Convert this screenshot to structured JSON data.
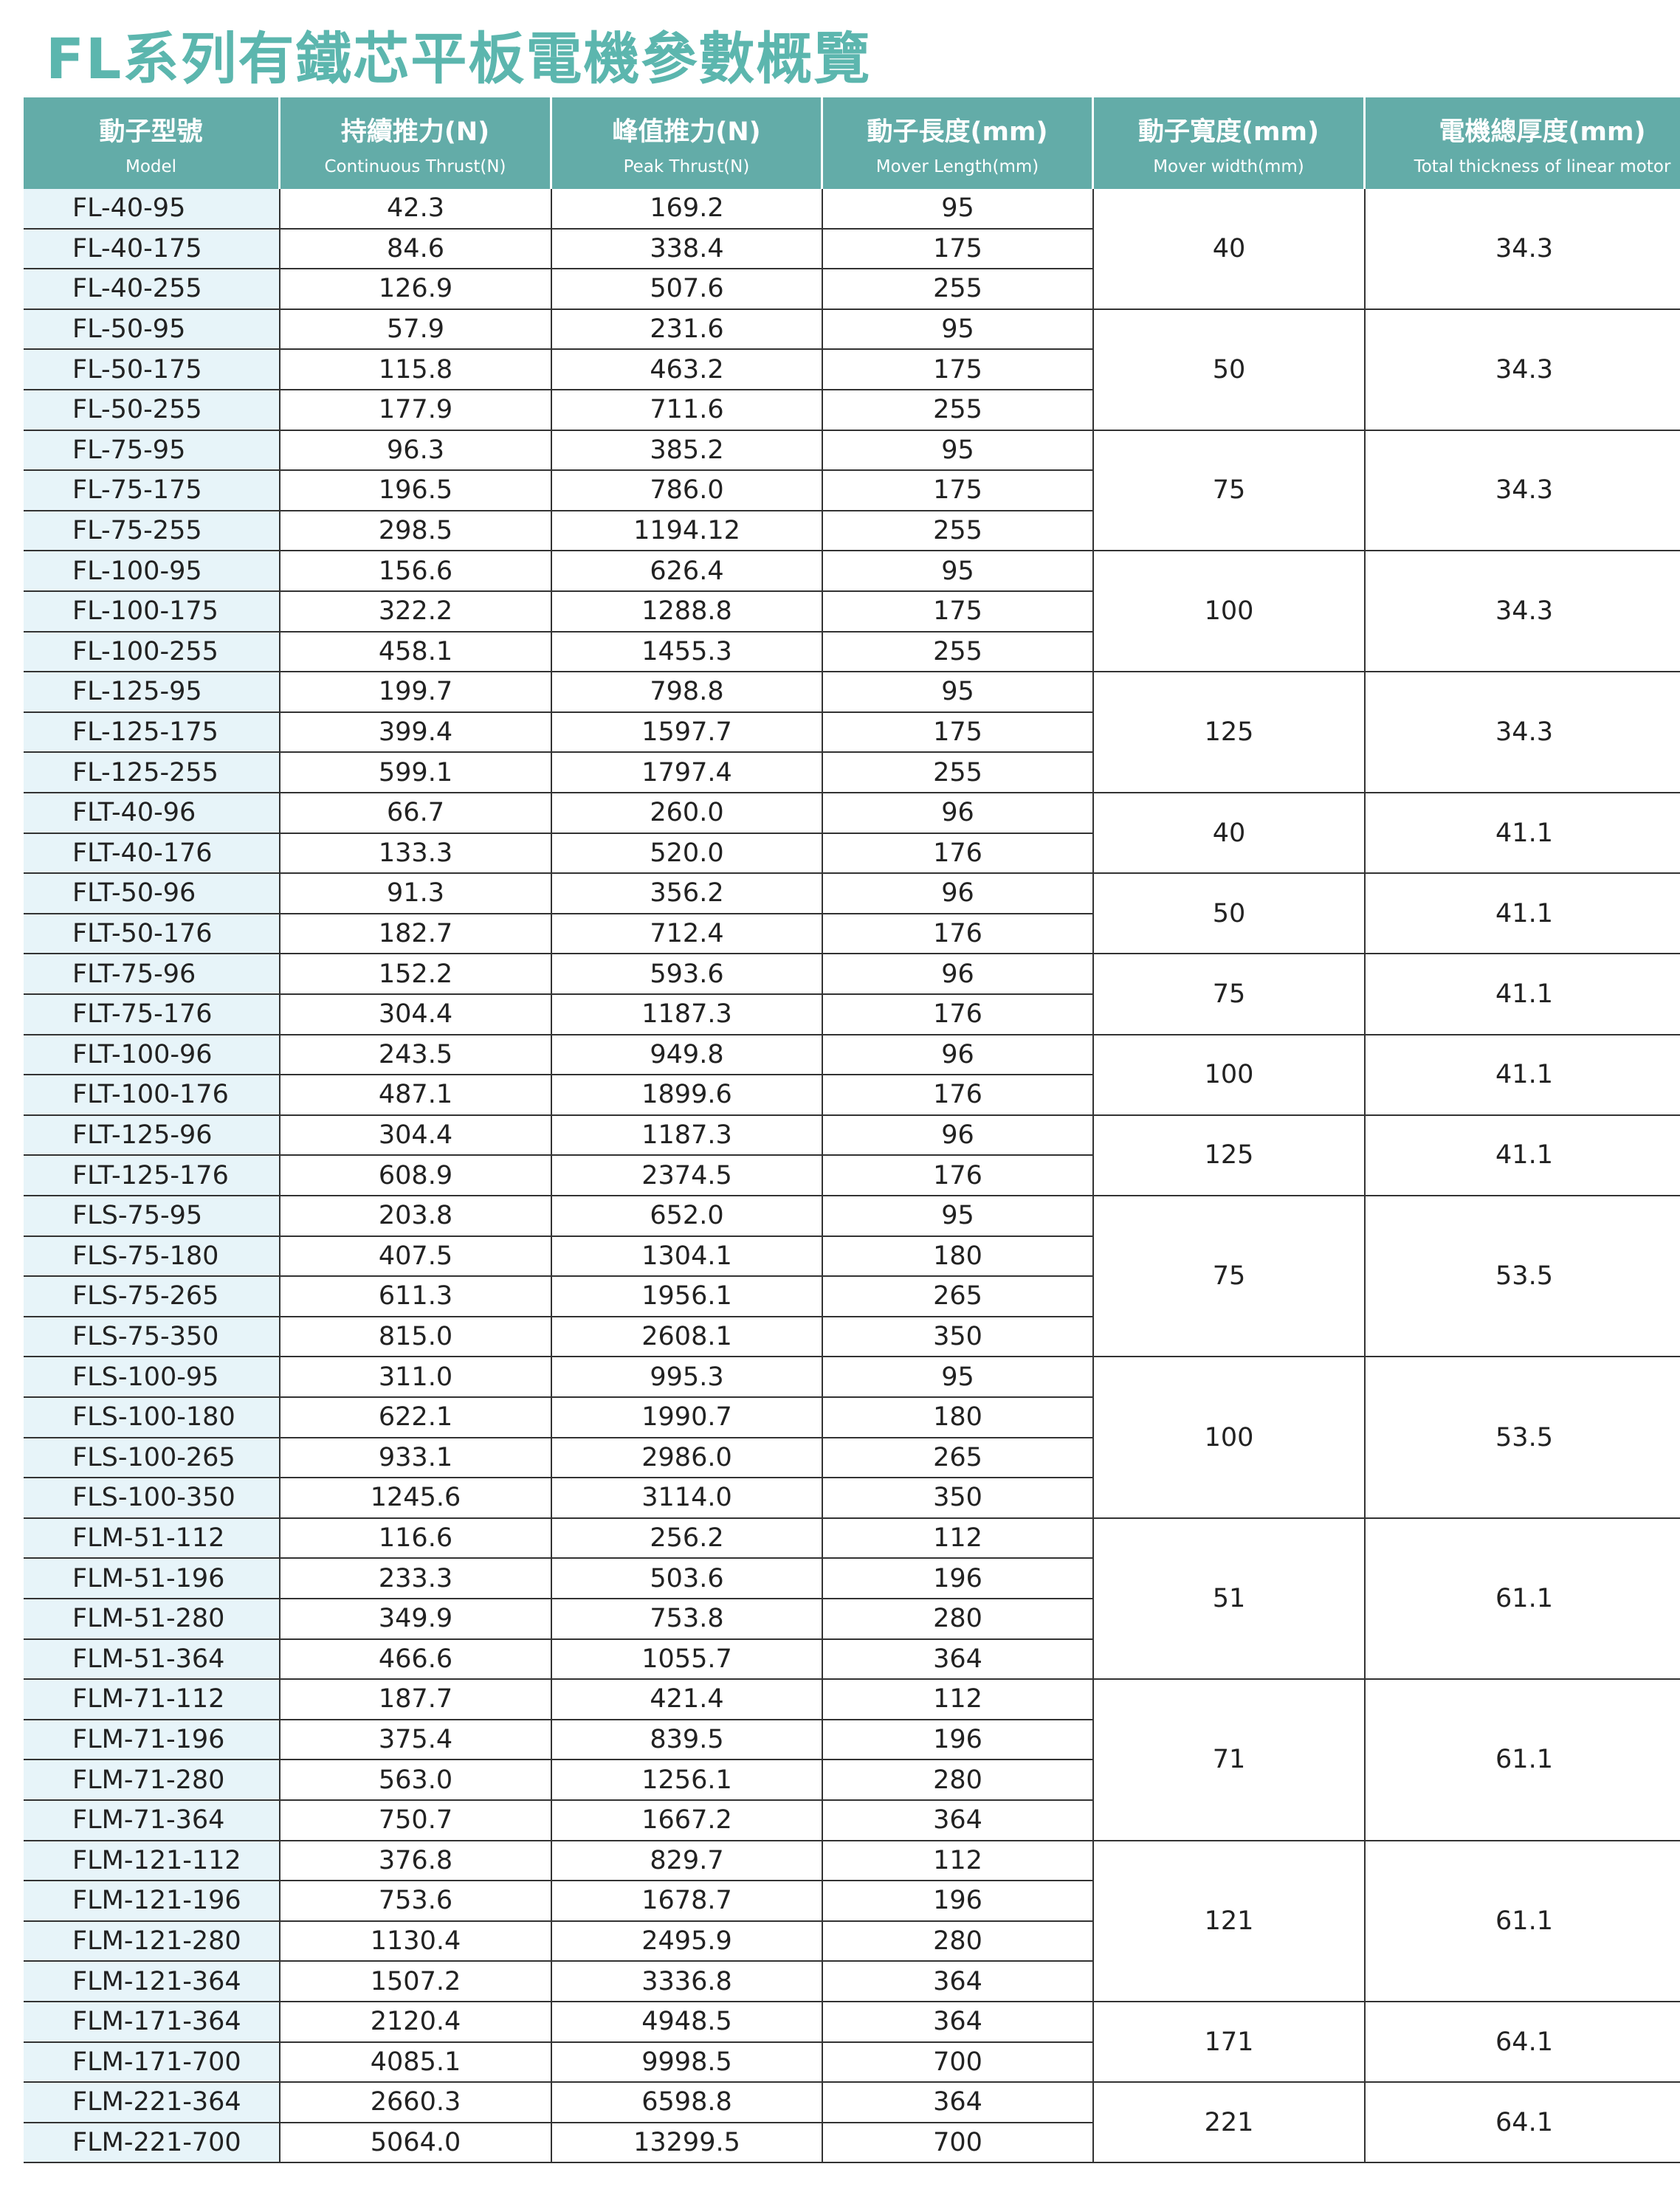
{
  "title": "FL系列有鐵芯平板電機參數概覽",
  "table": {
    "headers": [
      {
        "zh": "動子型號",
        "en": "Model"
      },
      {
        "zh": "持續推力(N)",
        "en": "Continuous Thrust(N)"
      },
      {
        "zh": "峰值推力(N)",
        "en": "Peak Thrust(N)"
      },
      {
        "zh": "動子長度(mm)",
        "en": "Mover Length(mm)"
      },
      {
        "zh": "動子寬度(mm)",
        "en": "Mover width(mm)"
      },
      {
        "zh": "電機總厚度(mm)",
        "en": "Total thickness of linear motor"
      }
    ],
    "groups": [
      {
        "width": "40",
        "thickness": "34.3",
        "rows": [
          [
            "FL-40-95",
            "42.3",
            "169.2",
            "95"
          ],
          [
            "FL-40-175",
            "84.6",
            "338.4",
            "175"
          ],
          [
            "FL-40-255",
            "126.9",
            "507.6",
            "255"
          ]
        ]
      },
      {
        "width": "50",
        "thickness": "34.3",
        "rows": [
          [
            "FL-50-95",
            "57.9",
            "231.6",
            "95"
          ],
          [
            "FL-50-175",
            "115.8",
            "463.2",
            "175"
          ],
          [
            "FL-50-255",
            "177.9",
            "711.6",
            "255"
          ]
        ]
      },
      {
        "width": "75",
        "thickness": "34.3",
        "rows": [
          [
            "FL-75-95",
            "96.3",
            "385.2",
            "95"
          ],
          [
            "FL-75-175",
            "196.5",
            "786.0",
            "175"
          ],
          [
            "FL-75-255",
            "298.5",
            "1194.12",
            "255"
          ]
        ]
      },
      {
        "width": "100",
        "thickness": "34.3",
        "rows": [
          [
            "FL-100-95",
            "156.6",
            "626.4",
            "95"
          ],
          [
            "FL-100-175",
            "322.2",
            "1288.8",
            "175"
          ],
          [
            "FL-100-255",
            "458.1",
            "1455.3",
            "255"
          ]
        ]
      },
      {
        "width": "125",
        "thickness": "34.3",
        "rows": [
          [
            "FL-125-95",
            "199.7",
            "798.8",
            "95"
          ],
          [
            "FL-125-175",
            "399.4",
            "1597.7",
            "175"
          ],
          [
            "FL-125-255",
            "599.1",
            "1797.4",
            "255"
          ]
        ]
      },
      {
        "width": "40",
        "thickness": "41.1",
        "rows": [
          [
            "FLT-40-96",
            "66.7",
            "260.0",
            "96"
          ],
          [
            "FLT-40-176",
            "133.3",
            "520.0",
            "176"
          ]
        ]
      },
      {
        "width": "50",
        "thickness": "41.1",
        "rows": [
          [
            "FLT-50-96",
            "91.3",
            "356.2",
            "96"
          ],
          [
            "FLT-50-176",
            "182.7",
            "712.4",
            "176"
          ]
        ]
      },
      {
        "width": "75",
        "thickness": "41.1",
        "rows": [
          [
            "FLT-75-96",
            "152.2",
            "593.6",
            "96"
          ],
          [
            "FLT-75-176",
            "304.4",
            "1187.3",
            "176"
          ]
        ]
      },
      {
        "width": "100",
        "thickness": "41.1",
        "rows": [
          [
            "FLT-100-96",
            "243.5",
            "949.8",
            "96"
          ],
          [
            "FLT-100-176",
            "487.1",
            "1899.6",
            "176"
          ]
        ]
      },
      {
        "width": "125",
        "thickness": "41.1",
        "rows": [
          [
            "FLT-125-96",
            "304.4",
            "1187.3",
            "96"
          ],
          [
            "FLT-125-176",
            "608.9",
            "2374.5",
            "176"
          ]
        ]
      },
      {
        "width": "75",
        "thickness": "53.5",
        "rows": [
          [
            "FLS-75-95",
            "203.8",
            "652.0",
            "95"
          ],
          [
            "FLS-75-180",
            "407.5",
            "1304.1",
            "180"
          ],
          [
            "FLS-75-265",
            "611.3",
            "1956.1",
            "265"
          ],
          [
            "FLS-75-350",
            "815.0",
            "2608.1",
            "350"
          ]
        ]
      },
      {
        "width": "100",
        "thickness": "53.5",
        "rows": [
          [
            "FLS-100-95",
            "311.0",
            "995.3",
            "95"
          ],
          [
            "FLS-100-180",
            "622.1",
            "1990.7",
            "180"
          ],
          [
            "FLS-100-265",
            "933.1",
            "2986.0",
            "265"
          ],
          [
            "FLS-100-350",
            "1245.6",
            "3114.0",
            "350"
          ]
        ]
      },
      {
        "width": "51",
        "thickness": "61.1",
        "rows": [
          [
            "FLM-51-112",
            "116.6",
            "256.2",
            "112"
          ],
          [
            "FLM-51-196",
            "233.3",
            "503.6",
            "196"
          ],
          [
            "FLM-51-280",
            "349.9",
            "753.8",
            "280"
          ],
          [
            "FLM-51-364",
            "466.6",
            "1055.7",
            "364"
          ]
        ]
      },
      {
        "width": "71",
        "thickness": "61.1",
        "rows": [
          [
            "FLM-71-112",
            "187.7",
            "421.4",
            "112"
          ],
          [
            "FLM-71-196",
            "375.4",
            "839.5",
            "196"
          ],
          [
            "FLM-71-280",
            "563.0",
            "1256.1",
            "280"
          ],
          [
            "FLM-71-364",
            "750.7",
            "1667.2",
            "364"
          ]
        ]
      },
      {
        "width": "121",
        "thickness": "61.1",
        "rows": [
          [
            "FLM-121-112",
            "376.8",
            "829.7",
            "112"
          ],
          [
            "FLM-121-196",
            "753.6",
            "1678.7",
            "196"
          ],
          [
            "FLM-121-280",
            "1130.4",
            "2495.9",
            "280"
          ],
          [
            "FLM-121-364",
            "1507.2",
            "3336.8",
            "364"
          ]
        ]
      },
      {
        "width": "171",
        "thickness": "64.1",
        "rows": [
          [
            "FLM-171-364",
            "2120.4",
            "4948.5",
            "364"
          ],
          [
            "FLM-171-700",
            "4085.1",
            "9998.5",
            "700"
          ]
        ]
      },
      {
        "width": "221",
        "thickness": "64.1",
        "rows": [
          [
            "FLM-221-364",
            "2660.3",
            "6598.8",
            "364"
          ],
          [
            "FLM-221-700",
            "5064.0",
            "13299.5",
            "700"
          ]
        ]
      }
    ]
  }
}
